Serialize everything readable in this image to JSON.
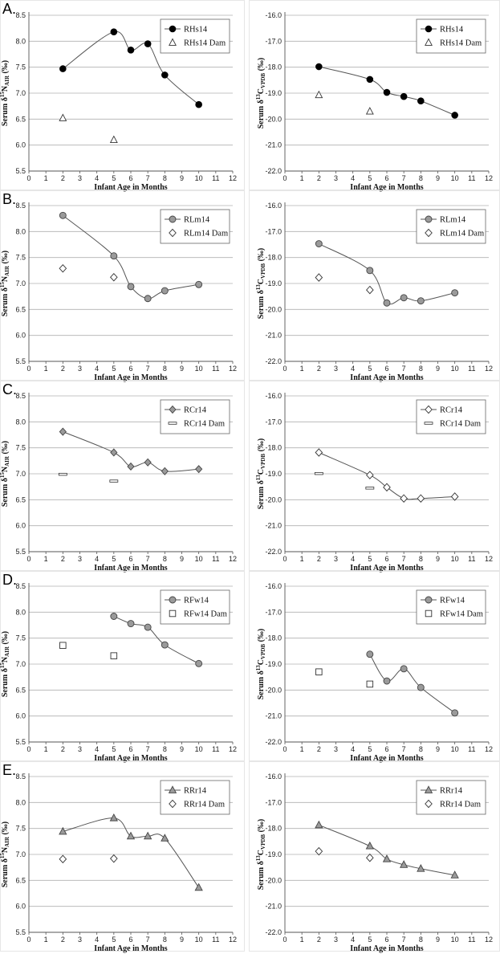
{
  "chart_data": [
    {
      "type": "line",
      "panel": "A.",
      "xlabel": "Infant Age in Months",
      "ylabel_main": "Serum δ",
      "ylabel_sup": "15",
      "ylabel_rest": "N",
      "ylabel_sub": "AIR",
      "ylabel_unit": " (‰)",
      "xlim": [
        0,
        12
      ],
      "ylim": [
        5.5,
        8.5
      ],
      "ystep": 0.5,
      "ydec": 1,
      "series": [
        {
          "name": "RHs14",
          "marker": "circle-black",
          "line": true,
          "x": [
            2,
            5,
            6,
            7,
            8,
            10
          ],
          "y": [
            7.47,
            8.18,
            7.83,
            7.95,
            7.35,
            6.78
          ]
        },
        {
          "name": "RHs14 Dam",
          "marker": "triangle-open",
          "line": false,
          "x": [
            2,
            5
          ],
          "y": [
            6.52,
            6.1
          ]
        }
      ]
    },
    {
      "type": "line",
      "panel": "",
      "xlabel": "Infant Age in Months",
      "ylabel_main": "Serum δ",
      "ylabel_sup": "13",
      "ylabel_rest": "C",
      "ylabel_sub": "VPDB",
      "ylabel_unit": " (‰)",
      "xlim": [
        0,
        12
      ],
      "ylim": [
        -22,
        -16
      ],
      "ystep": 1,
      "ydec": 1,
      "series": [
        {
          "name": "RHs14",
          "marker": "circle-black",
          "line": true,
          "x": [
            2,
            5,
            6,
            7,
            8,
            10
          ],
          "y": [
            -17.98,
            -18.47,
            -18.97,
            -19.13,
            -19.3,
            -19.85
          ]
        },
        {
          "name": "RHs14 Dam",
          "marker": "triangle-open",
          "line": false,
          "x": [
            2,
            5
          ],
          "y": [
            -19.07,
            -19.7
          ]
        }
      ]
    },
    {
      "type": "line",
      "panel": "B.",
      "xlabel": "Infant Age in Months",
      "ylabel_main": "Serum δ",
      "ylabel_sup": "15",
      "ylabel_rest": "N",
      "ylabel_sub": "AIR",
      "ylabel_unit": " (‰)",
      "xlim": [
        0,
        12
      ],
      "ylim": [
        5.5,
        8.5
      ],
      "ystep": 0.5,
      "ydec": 1,
      "series": [
        {
          "name": "RLm14",
          "marker": "circle-gray",
          "line": true,
          "x": [
            2,
            5,
            6,
            7,
            8,
            10
          ],
          "y": [
            8.31,
            7.53,
            6.94,
            6.71,
            6.86,
            6.98
          ]
        },
        {
          "name": "RLm14 Dam",
          "marker": "diamond-open",
          "line": false,
          "x": [
            2,
            5
          ],
          "y": [
            7.29,
            7.12
          ]
        }
      ]
    },
    {
      "type": "line",
      "panel": "",
      "xlabel": "Infant Age in Months",
      "ylabel_main": "Serum δ",
      "ylabel_sup": "13",
      "ylabel_rest": "C",
      "ylabel_sub": "VPDB",
      "ylabel_unit": " (‰)",
      "xlim": [
        0,
        12
      ],
      "ylim": [
        -22,
        -16
      ],
      "ystep": 1,
      "ydec": 1,
      "series": [
        {
          "name": "RLm14",
          "marker": "circle-gray",
          "line": true,
          "x": [
            2,
            5,
            6,
            7,
            8,
            10
          ],
          "y": [
            -17.47,
            -18.5,
            -19.75,
            -19.55,
            -19.67,
            -19.36
          ]
        },
        {
          "name": "RLm14 Dam",
          "marker": "diamond-open",
          "line": false,
          "x": [
            2,
            5
          ],
          "y": [
            -18.77,
            -19.25
          ]
        }
      ]
    },
    {
      "type": "line",
      "panel": "C.",
      "xlabel": "Infant Age in Months",
      "ylabel_main": "Serum δ",
      "ylabel_sup": "15",
      "ylabel_rest": "N",
      "ylabel_sub": "AIR",
      "ylabel_unit": " (‰)",
      "xlim": [
        0,
        12
      ],
      "ylim": [
        5.5,
        8.5
      ],
      "ystep": 0.5,
      "ydec": 1,
      "series": [
        {
          "name": "RCr14",
          "marker": "diamond-gray",
          "line": true,
          "x": [
            2,
            5,
            6,
            7,
            8,
            10
          ],
          "y": [
            7.81,
            7.41,
            7.14,
            7.22,
            7.05,
            7.09
          ]
        },
        {
          "name": "RCr14 Dam",
          "marker": "dash-open",
          "line": false,
          "x": [
            2,
            5
          ],
          "y": [
            6.99,
            6.86
          ]
        }
      ]
    },
    {
      "type": "line",
      "panel": "",
      "xlabel": "Infant Age in Months",
      "ylabel_main": "Serum δ",
      "ylabel_sup": "13",
      "ylabel_rest": "C",
      "ylabel_sub": "VPDB",
      "ylabel_unit": " (‰)",
      "xlim": [
        0,
        12
      ],
      "ylim": [
        -22,
        -16
      ],
      "ystep": 1,
      "ydec": 1,
      "series": [
        {
          "name": "RCr14",
          "marker": "diamond-open",
          "line": true,
          "x": [
            2,
            5,
            6,
            7,
            8,
            10
          ],
          "y": [
            -18.18,
            -19.05,
            -19.52,
            -19.95,
            -19.95,
            -19.88
          ]
        },
        {
          "name": "RCr14 Dam",
          "marker": "dash-open",
          "line": false,
          "x": [
            2,
            5
          ],
          "y": [
            -18.99,
            -19.55
          ]
        }
      ]
    },
    {
      "type": "line",
      "panel": "D.",
      "xlabel": "Infant Age in Months",
      "ylabel_main": "Serum δ",
      "ylabel_sup": "15",
      "ylabel_rest": "N",
      "ylabel_sub": "AIR",
      "ylabel_unit": " (‰)",
      "xlim": [
        0,
        12
      ],
      "ylim": [
        5.5,
        8.5
      ],
      "ystep": 0.5,
      "ydec": 1,
      "series": [
        {
          "name": "RFw14",
          "marker": "circle-gray",
          "line": true,
          "x": [
            5,
            6,
            7,
            8,
            10
          ],
          "y": [
            7.92,
            7.78,
            7.71,
            7.37,
            7.01
          ]
        },
        {
          "name": "RFw14 Dam",
          "marker": "square-open",
          "line": false,
          "x": [
            2,
            5
          ],
          "y": [
            7.36,
            7.16
          ]
        }
      ]
    },
    {
      "type": "line",
      "panel": "",
      "xlabel": "Infant Age in Months",
      "ylabel_main": "Serum δ",
      "ylabel_sup": "13",
      "ylabel_rest": "C",
      "ylabel_sub": "VPDB",
      "ylabel_unit": " (‰)",
      "xlim": [
        0,
        12
      ],
      "ylim": [
        -22,
        -16
      ],
      "ystep": 1,
      "ydec": 1,
      "series": [
        {
          "name": "RFw14",
          "marker": "circle-gray",
          "line": true,
          "x": [
            5,
            6,
            7,
            8,
            10
          ],
          "y": [
            -18.62,
            -19.65,
            -19.18,
            -19.9,
            -20.88
          ]
        },
        {
          "name": "RFw14 Dam",
          "marker": "square-open",
          "line": false,
          "x": [
            2,
            5
          ],
          "y": [
            -19.3,
            -19.77
          ]
        }
      ]
    },
    {
      "type": "line",
      "panel": "E.",
      "xlabel": "Infant Age in Months",
      "ylabel_main": "Serum δ",
      "ylabel_sup": "15",
      "ylabel_rest": "N",
      "ylabel_sub": "AIR",
      "ylabel_unit": " (‰)",
      "xlim": [
        0,
        12
      ],
      "ylim": [
        5.5,
        8.5
      ],
      "ystep": 0.5,
      "ydec": 1,
      "series": [
        {
          "name": "RRr14",
          "marker": "triangle-gray",
          "line": true,
          "x": [
            2,
            5,
            6,
            7,
            8,
            10
          ],
          "y": [
            7.44,
            7.7,
            7.35,
            7.35,
            7.31,
            6.36
          ]
        },
        {
          "name": "RRr14 Dam",
          "marker": "diamond-open",
          "line": false,
          "x": [
            2,
            5
          ],
          "y": [
            6.91,
            6.92
          ]
        }
      ]
    },
    {
      "type": "line",
      "panel": "",
      "xlabel": "Infant Age in Months",
      "ylabel_main": "Serum δ",
      "ylabel_sup": "13",
      "ylabel_rest": "C",
      "ylabel_sub": "VPDB",
      "ylabel_unit": " (‰)",
      "xlim": [
        0,
        12
      ],
      "ylim": [
        -22,
        -16
      ],
      "ystep": 1,
      "ydec": 1,
      "series": [
        {
          "name": "RRr14",
          "marker": "triangle-gray",
          "line": true,
          "x": [
            2,
            5,
            6,
            7,
            8,
            10
          ],
          "y": [
            -17.87,
            -18.68,
            -19.18,
            -19.4,
            -19.55,
            -19.8
          ]
        },
        {
          "name": "RRr14 Dam",
          "marker": "diamond-open",
          "line": false,
          "x": [
            2,
            5
          ],
          "y": [
            -18.88,
            -19.13
          ]
        }
      ]
    }
  ],
  "colors": {
    "gridline": "#b0b0b0",
    "axis": "#555555",
    "line": "#555555",
    "black_marker": "#000000",
    "gray_marker": "#9a9a9a",
    "open_marker_fill": "#ffffff"
  }
}
